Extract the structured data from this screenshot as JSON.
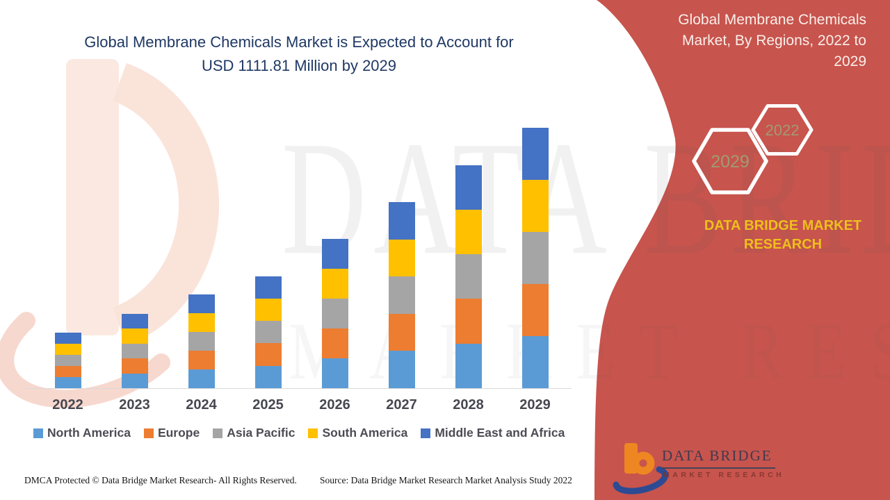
{
  "header": {
    "title_line1": "Global Membrane Chemicals Market is Expected to Account for",
    "title_line2": "USD 1111.81 Million by 2029"
  },
  "watermark": {
    "line1": "DATA BRIDGE",
    "line2": "MARKET RESEARCH"
  },
  "panel": {
    "title": "Global Membrane Chemicals Market, By Regions, 2022 to 2029",
    "hexagons": [
      {
        "label": "2029"
      },
      {
        "label": "2022"
      }
    ],
    "caption": "DATA BRIDGE MARKET RESEARCH",
    "logo_title": "DATA BRIDGE",
    "logo_subtitle": "MARKET RESEARCH",
    "accent_red": "#C7544D",
    "caption_gold": "#EFBF1C"
  },
  "footer": {
    "dmca": "DMCA Protected © Data Bridge Market Research- All Rights Reserved.",
    "source": "Source: Data Bridge Market Research Market Analysis Study 2022"
  },
  "chart_data": {
    "type": "bar",
    "stacked": true,
    "title": "Global Membrane Chemicals Market is Expected to Account for USD 1111.81 Million by 2029",
    "unit": "USD Million",
    "categories": [
      "2022",
      "2023",
      "2024",
      "2025",
      "2026",
      "2027",
      "2028",
      "2029"
    ],
    "series": [
      {
        "name": "North America",
        "color": "#5B9BD5",
        "values": [
          47.4,
          63.6,
          80.0,
          95.8,
          127.6,
          159.0,
          190.6,
          222.36
        ]
      },
      {
        "name": "Europe",
        "color": "#ED7D31",
        "values": [
          47.4,
          63.6,
          80.0,
          95.8,
          127.6,
          159.0,
          190.6,
          222.36
        ]
      },
      {
        "name": "Asia Pacific",
        "color": "#A5A5A5",
        "values": [
          47.4,
          63.6,
          80.0,
          95.8,
          127.6,
          159.0,
          190.6,
          222.36
        ]
      },
      {
        "name": "South America",
        "color": "#FFC000",
        "values": [
          47.4,
          63.6,
          80.0,
          95.8,
          127.6,
          159.0,
          190.6,
          222.36
        ]
      },
      {
        "name": "Middle East and Africa",
        "color": "#4472C4",
        "values": [
          47.4,
          63.6,
          80.0,
          95.8,
          127.6,
          159.0,
          190.6,
          222.36
        ]
      }
    ],
    "totals": [
      237.0,
      318.0,
      400.0,
      479.0,
      638.0,
      795.0,
      953.0,
      1111.81
    ],
    "ylim": [
      0,
      1160
    ],
    "grid": false,
    "legend_position": "bottom",
    "values_estimated_from_pixels": true
  }
}
